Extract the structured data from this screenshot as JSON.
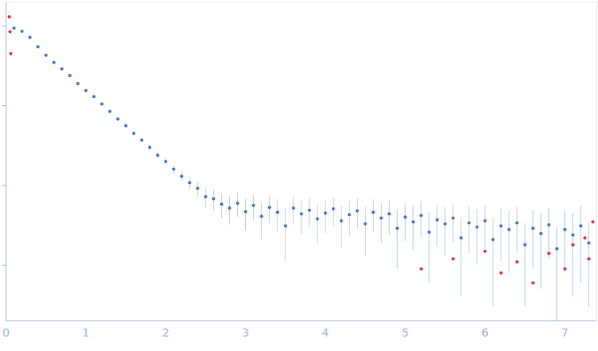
{
  "chart_data": {
    "type": "scatter",
    "log": "y",
    "tick_labels": "x",
    "grid": false,
    "xlim": [
      0,
      7.4
    ],
    "xticks": [
      0,
      1,
      2,
      3,
      4,
      5,
      6,
      7
    ],
    "ylim": [
      0.0002,
      2
    ],
    "yticks": [
      0.001,
      0.01,
      0.1,
      1
    ],
    "series": [
      {
        "color": "#3a6fc4",
        "marker": "circle",
        "x": [
          0.1,
          0.2,
          0.3,
          0.4,
          0.5,
          0.6,
          0.7,
          0.8,
          0.9,
          1.0,
          1.1,
          1.2,
          1.3,
          1.4,
          1.5,
          1.6,
          1.7,
          1.8,
          1.9,
          2.0,
          2.1,
          2.2,
          2.3,
          2.4,
          2.5,
          2.6,
          2.7,
          2.8,
          2.9,
          3.0,
          3.1,
          3.2,
          3.3,
          3.4,
          3.5,
          3.6,
          3.7,
          3.8,
          3.9,
          4.0,
          4.1,
          4.2,
          4.3,
          4.4,
          4.5,
          4.6,
          4.7,
          4.8,
          4.9,
          5.0,
          5.1,
          5.2,
          5.3,
          5.4,
          5.5,
          5.6,
          5.7,
          5.8,
          5.9,
          6.0,
          6.1,
          6.2,
          6.3,
          6.4,
          6.5,
          6.6,
          6.7,
          6.8,
          6.9,
          7.0,
          7.1,
          7.2,
          7.3
        ],
        "values": [
          0.94,
          0.86,
          0.72,
          0.55,
          0.43,
          0.35,
          0.29,
          0.24,
          0.19,
          0.155,
          0.13,
          0.105,
          0.085,
          0.068,
          0.056,
          0.045,
          0.037,
          0.03,
          0.024,
          0.02,
          0.016,
          0.013,
          0.0108,
          0.0092,
          0.0072,
          0.0068,
          0.0058,
          0.0052,
          0.006,
          0.0047,
          0.0056,
          0.0041,
          0.0053,
          0.0046,
          0.0031,
          0.0052,
          0.0044,
          0.0049,
          0.0038,
          0.0045,
          0.0051,
          0.0036,
          0.0043,
          0.0048,
          0.0033,
          0.0046,
          0.0039,
          0.0044,
          0.0029,
          0.004,
          0.0035,
          0.0042,
          0.0026,
          0.0037,
          0.0033,
          0.0039,
          0.0022,
          0.0034,
          0.003,
          0.0036,
          0.0021,
          0.0031,
          0.0028,
          0.0034,
          0.0018,
          0.0029,
          0.0025,
          0.0032,
          0.0016,
          0.0028,
          0.0024,
          0.0031,
          0.0019
        ],
        "errors": [
          0.01,
          0.01,
          0.01,
          0.01,
          0.008,
          0.007,
          0.006,
          0.005,
          0.004,
          0.004,
          0.003,
          0.003,
          0.003,
          0.003,
          0.003,
          0.002,
          0.002,
          0.002,
          0.002,
          0.002,
          0.002,
          0.002,
          0.002,
          0.002,
          0.002,
          0.002,
          0.002,
          0.002,
          0.002,
          0.002,
          0.002,
          0.002,
          0.002,
          0.002,
          0.002,
          0.002,
          0.002,
          0.002,
          0.002,
          0.002,
          0.002,
          0.002,
          0.002,
          0.002,
          0.002,
          0.002,
          0.002,
          0.002,
          0.002,
          0.002,
          0.002,
          0.002,
          0.002,
          0.002,
          0.002,
          0.002,
          0.0018,
          0.002,
          0.002,
          0.002,
          0.0018,
          0.002,
          0.002,
          0.002,
          0.0015,
          0.002,
          0.002,
          0.002,
          0.0014,
          0.002,
          0.002,
          0.0025,
          0.0016
        ]
      },
      {
        "color": "#e8262b",
        "marker": "circle",
        "x": [
          0.04,
          0.05,
          0.06,
          5.2,
          5.6,
          6.0,
          6.2,
          6.4,
          6.6,
          6.8,
          7.0,
          7.1,
          7.25,
          7.3,
          7.35
        ],
        "values": [
          1.3,
          0.85,
          0.45,
          0.0009,
          0.0012,
          0.0015,
          0.0008,
          0.0011,
          0.0006,
          0.0014,
          0.0009,
          0.0018,
          0.0022,
          0.0012,
          0.0035
        ]
      }
    ]
  }
}
